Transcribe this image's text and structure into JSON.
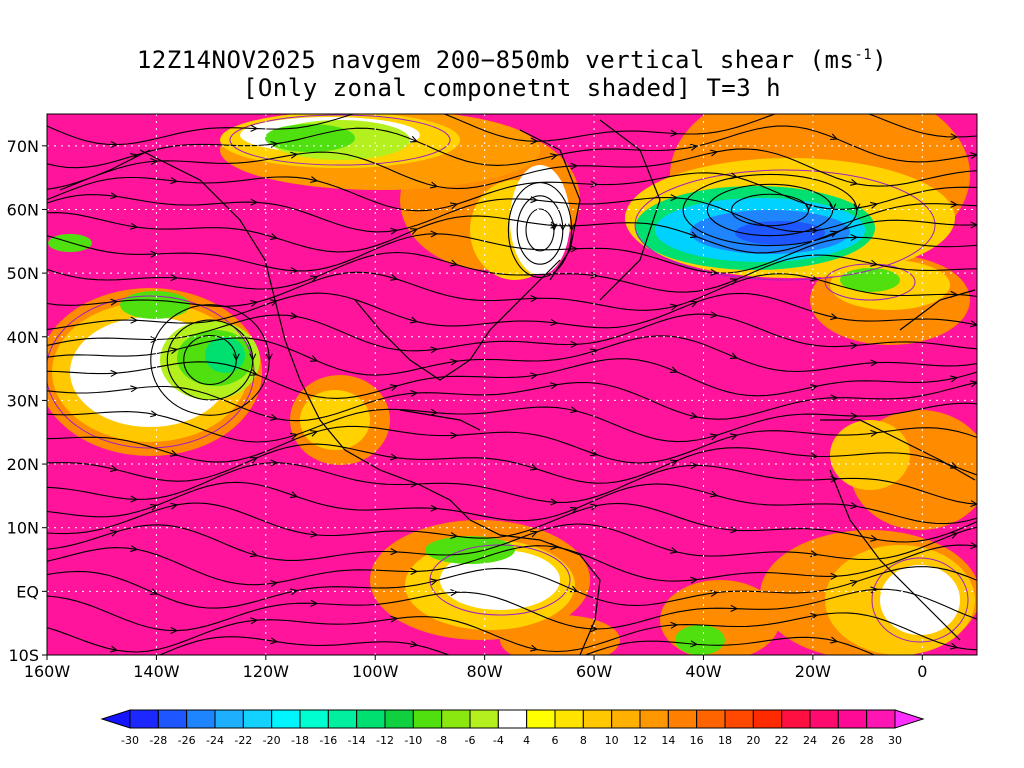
{
  "title": {
    "line1_prefix": "12Z14NOV2025 navgem 200−850mb vertical shear (ms",
    "line1_sup": "-1",
    "line1_suffix": ")",
    "line2": "[Only zonal componetnt shaded] T=3 h"
  },
  "axes": {
    "lat_labels": [
      "70N",
      "60N",
      "50N",
      "40N",
      "30N",
      "20N",
      "10N",
      "EQ",
      "10S"
    ],
    "lat_values": [
      70,
      60,
      50,
      40,
      30,
      20,
      10,
      0,
      -10
    ],
    "lon_labels": [
      "160W",
      "140W",
      "120W",
      "100W",
      "80W",
      "60W",
      "40W",
      "20W",
      "0"
    ],
    "lon_values": [
      -160,
      -140,
      -120,
      -100,
      -80,
      -60,
      -40,
      -20,
      0
    ],
    "lon_range": [
      -160,
      10
    ],
    "lat_range": [
      -10,
      75
    ],
    "grid": "dotted"
  },
  "colorbar": {
    "labels": [
      "-30",
      "-28",
      "-26",
      "-24",
      "-22",
      "-20",
      "-18",
      "-16",
      "-14",
      "-12",
      "-10",
      "-8",
      "-6",
      "-4",
      "4",
      "6",
      "8",
      "10",
      "12",
      "14",
      "16",
      "18",
      "20",
      "22",
      "24",
      "26",
      "28",
      "30"
    ],
    "colors": [
      "#1c28ff",
      "#1e57ff",
      "#1e85ff",
      "#1eb0ff",
      "#14d2ff",
      "#00f5ff",
      "#00ffd0",
      "#00f0a0",
      "#00e070",
      "#10d040",
      "#50e010",
      "#8ae810",
      "#b4f01e",
      "#ffffff",
      "#ffff00",
      "#ffe400",
      "#ffc800",
      "#ffb000",
      "#ff9800",
      "#ff8000",
      "#ff6400",
      "#ff4800",
      "#ff2a00",
      "#ff1040",
      "#ff0a6e",
      "#ff0a96",
      "#ff14b4"
    ],
    "low_arrow_color": "#1414ff",
    "high_arrow_color": "#ff30ff"
  },
  "colors": {
    "dominant_positive": "#ff149b",
    "contour": "#a020c0",
    "coastline": "#000000",
    "streamline": "#000000",
    "grid": "#ffffff"
  }
}
